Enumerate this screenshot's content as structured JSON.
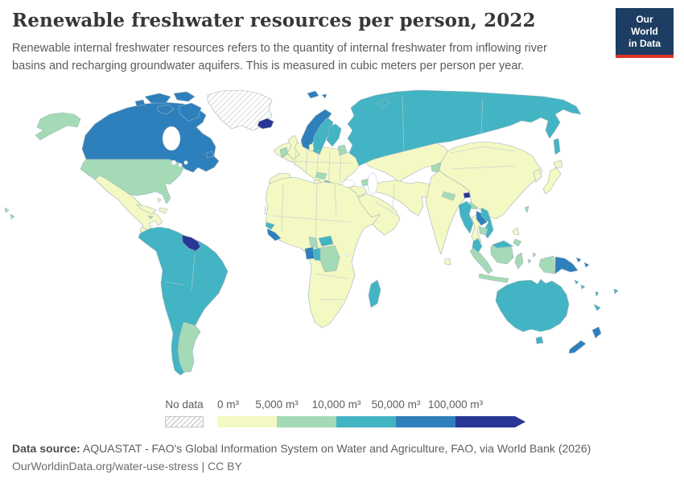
{
  "header": {
    "title": "Renewable freshwater resources per person, 2022",
    "subtitle": "Renewable internal freshwater resources refers to the quantity of internal freshwater from inflowing river basins and recharging groundwater aquifers. This is measured in cubic meters per person per year.",
    "logo": {
      "line1": "Our World",
      "line2": "in Data",
      "bg": "#1d3d63",
      "accent": "#d8352b"
    }
  },
  "legend": {
    "no_data_label": "No data",
    "ticks": [
      "0 m³",
      "5,000 m³",
      "10,000 m³",
      "50,000 m³",
      "100,000 m³"
    ],
    "hatch_color": "#d2d2d2"
  },
  "map": {
    "border_color": "#9fb3bd",
    "ocean_color": "#ffffff",
    "bin_order": [
      "b0",
      "b1",
      "b2",
      "b3",
      "b4"
    ],
    "bins": {
      "b0": "#f4f8c3",
      "b1": "#a4dab5",
      "b2": "#43b4c3",
      "b3": "#2e80bc",
      "b4": "#283795",
      "no_data": "hatch"
    },
    "bin_labels": {
      "b0": "0–5,000 m³",
      "b1": "5,000–10,000 m³",
      "b2": "10,000–50,000 m³",
      "b3": "50,000–100,000 m³",
      "b4": "100,000 m³ and over",
      "no_data": "No data"
    },
    "regions": [
      {
        "id": "greenland",
        "label": "Greenland",
        "bin": "no_data"
      },
      {
        "id": "western-sahara",
        "label": "Western Sahara",
        "bin": "no_data"
      },
      {
        "id": "french-guiana",
        "label": "French Guiana",
        "bin": "no_data"
      },
      {
        "id": "iceland",
        "label": "Iceland",
        "bin": "b4"
      },
      {
        "id": "guyana-suriname",
        "label": "Guyana and Suriname",
        "bin": "b4"
      },
      {
        "id": "bhutan",
        "label": "Bhutan",
        "bin": "b4"
      },
      {
        "id": "canada",
        "label": "Canada",
        "bin": "b3"
      },
      {
        "id": "norway",
        "label": "Norway",
        "bin": "b3"
      },
      {
        "id": "svalbard",
        "label": "Svalbard",
        "bin": "b3"
      },
      {
        "id": "gabon",
        "label": "Gabon",
        "bin": "b3"
      },
      {
        "id": "liberia-sierra-leone",
        "label": "Liberia and Sierra Leone",
        "bin": "b3"
      },
      {
        "id": "laos",
        "label": "Laos",
        "bin": "b3"
      },
      {
        "id": "papua-new-guinea",
        "label": "Papua New Guinea",
        "bin": "b3"
      },
      {
        "id": "new-zealand",
        "label": "New Zealand",
        "bin": "b3"
      },
      {
        "id": "russia",
        "label": "Russia",
        "bin": "b2"
      },
      {
        "id": "sweden",
        "label": "Sweden",
        "bin": "b2"
      },
      {
        "id": "finland",
        "label": "Finland",
        "bin": "b2"
      },
      {
        "id": "central-america",
        "label": "Central America",
        "bin": "b2"
      },
      {
        "id": "south-america",
        "label": "South America (most countries)",
        "bin": "b2"
      },
      {
        "id": "guinea",
        "label": "Guinea",
        "bin": "b2"
      },
      {
        "id": "central-african-republic",
        "label": "Central African Republic",
        "bin": "b2"
      },
      {
        "id": "congo",
        "label": "Congo",
        "bin": "b2"
      },
      {
        "id": "madagascar",
        "label": "Madagascar",
        "bin": "b2"
      },
      {
        "id": "myanmar",
        "label": "Myanmar",
        "bin": "b2"
      },
      {
        "id": "vietnam",
        "label": "Vietnam",
        "bin": "b2"
      },
      {
        "id": "malaysia",
        "label": "Malaysia",
        "bin": "b2"
      },
      {
        "id": "australia",
        "label": "Australia",
        "bin": "b2"
      },
      {
        "id": "fiji",
        "label": "Fiji",
        "bin": "b2"
      },
      {
        "id": "solomon-islands",
        "label": "Solomon Islands",
        "bin": "b2"
      },
      {
        "id": "vanuatu",
        "label": "Vanuatu",
        "bin": "b2"
      },
      {
        "id": "new-caledonia",
        "label": "New Caledonia",
        "bin": "b2"
      },
      {
        "id": "bosnia-albania",
        "label": "Bosnia and Albania",
        "bin": "b2"
      },
      {
        "id": "united-states",
        "label": "United States",
        "bin": "b1"
      },
      {
        "id": "ireland",
        "label": "Ireland",
        "bin": "b1"
      },
      {
        "id": "baltics",
        "label": "Estonia and Latvia",
        "bin": "b1"
      },
      {
        "id": "alpine-balkans",
        "label": "Austria, Slovenia and Croatia",
        "bin": "b1"
      },
      {
        "id": "kyrgyzstan-tajikistan",
        "label": "Kyrgyzstan and Tajikistan",
        "bin": "b1"
      },
      {
        "id": "caucasus",
        "label": "Georgia and Armenia",
        "bin": "b1"
      },
      {
        "id": "argentina-paraguay",
        "label": "Argentina, Paraguay and Uruguay",
        "bin": "b1"
      },
      {
        "id": "cameroon",
        "label": "Cameroon",
        "bin": "b1"
      },
      {
        "id": "drc",
        "label": "Democratic Republic of Congo",
        "bin": "b1"
      },
      {
        "id": "nepal",
        "label": "Nepal",
        "bin": "b1"
      },
      {
        "id": "bangladesh",
        "label": "Bangladesh",
        "bin": "b1"
      },
      {
        "id": "cambodia",
        "label": "Cambodia",
        "bin": "b1"
      },
      {
        "id": "indonesia",
        "label": "Indonesia",
        "bin": "b1"
      },
      {
        "id": "philippines-south",
        "label": "Philippines (Mindanao)",
        "bin": "b1"
      },
      {
        "id": "jamaica",
        "label": "Jamaica",
        "bin": "b1"
      },
      {
        "id": "taiwan",
        "label": "Taiwan",
        "bin": "b1"
      },
      {
        "id": "mexico",
        "label": "Mexico",
        "bin": "b0"
      },
      {
        "id": "guatemala",
        "label": "Guatemala",
        "bin": "b0"
      },
      {
        "id": "cuba",
        "label": "Cuba",
        "bin": "b0"
      },
      {
        "id": "hispaniola",
        "label": "Haiti and Dominican Republic",
        "bin": "b0"
      },
      {
        "id": "bahamas",
        "label": "Bahamas",
        "bin": "b0"
      },
      {
        "id": "europe",
        "label": "Europe (most countries)",
        "bin": "b0"
      },
      {
        "id": "kazakhstan-central-asia",
        "label": "Kazakhstan and Central Asia",
        "bin": "b0"
      },
      {
        "id": "turkey",
        "label": "Turkey",
        "bin": "b0"
      },
      {
        "id": "middle-east",
        "label": "Middle East",
        "bin": "b0"
      },
      {
        "id": "africa",
        "label": "Africa (most countries)",
        "bin": "b0"
      },
      {
        "id": "india",
        "label": "India",
        "bin": "b0"
      },
      {
        "id": "sri-lanka",
        "label": "Sri Lanka",
        "bin": "b0"
      },
      {
        "id": "china",
        "label": "China and Mongolia",
        "bin": "b0"
      },
      {
        "id": "korea",
        "label": "South Korea",
        "bin": "b0"
      },
      {
        "id": "japan",
        "label": "Japan",
        "bin": "b0"
      },
      {
        "id": "thailand",
        "label": "Thailand",
        "bin": "b0"
      },
      {
        "id": "philippines-north",
        "label": "Philippines (Luzon)",
        "bin": "b0"
      }
    ]
  },
  "footer": {
    "source_label": "Data source:",
    "source_text": " AQUASTAT - FAO's Global Information System on Water and Agriculture, FAO, via World Bank (2026)",
    "line2": "OurWorldinData.org/water-use-stress | CC BY"
  }
}
